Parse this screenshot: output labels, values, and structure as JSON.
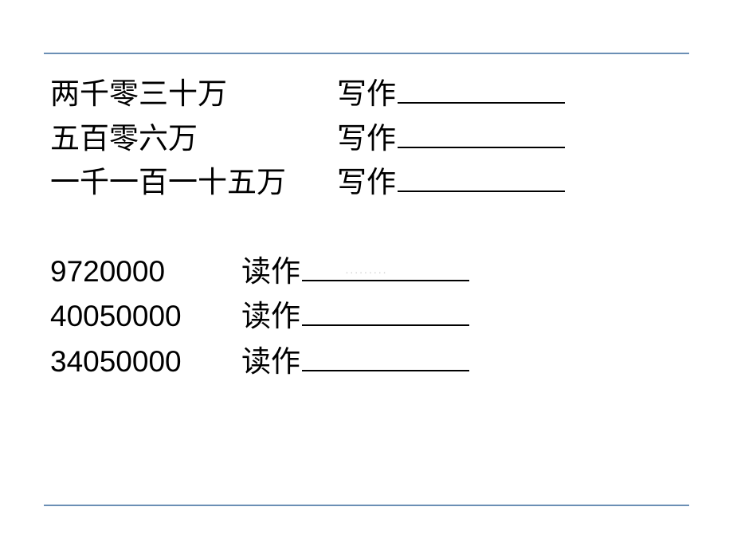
{
  "colors": {
    "line": "#6b8fb5",
    "text": "#000000",
    "background": "#ffffff",
    "watermark": "#d0d0d0"
  },
  "typography": {
    "main_fontsize": 37,
    "font_family_cn": "SimSun",
    "font_family_num": "Arial"
  },
  "write_rows": [
    {
      "chinese": "两千零三十万",
      "label": "写作"
    },
    {
      "chinese": "五百零六万",
      "label": "写作"
    },
    {
      "chinese": "一千一百一十五万",
      "label": "写作"
    }
  ],
  "read_rows": [
    {
      "number": "9720000",
      "label": "读作"
    },
    {
      "number": "40050000",
      "label": "读作"
    },
    {
      "number": "34050000",
      "label": "读作"
    }
  ],
  "watermark": "........."
}
